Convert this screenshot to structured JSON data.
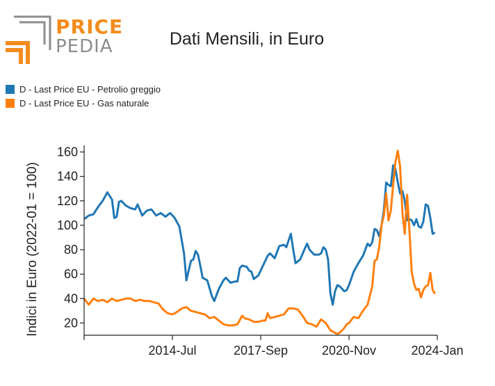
{
  "logo": {
    "word1": "PRICE",
    "word2": "PEDIA",
    "orange": "#f28c1c",
    "gray": "#8c8c8c"
  },
  "chart_data": {
    "type": "line",
    "title": "Dati Mensili, in Euro",
    "ylabel": "Indici in Euro (2022-01 = 100)",
    "xlabel": "",
    "x_range": [
      "2011-05",
      "2024-01"
    ],
    "x_ticks": [
      {
        "date": "2011-05",
        "label": ""
      },
      {
        "date": "2014-07",
        "label": "2014-Jul"
      },
      {
        "date": "2017-09",
        "label": "2017-Sep"
      },
      {
        "date": "2020-11",
        "label": "2020-Nov"
      },
      {
        "date": "2024-01",
        "label": "2024-Jan"
      }
    ],
    "ylim": [
      10,
      162
    ],
    "y_ticks": [
      20,
      40,
      60,
      80,
      100,
      120,
      140,
      160
    ],
    "grid": false,
    "legend_position": "top-left",
    "series": [
      {
        "name": "D - Last Price EU - Petrolio greggio",
        "color": "#1f77b4",
        "points": [
          [
            "2011-05",
            105
          ],
          [
            "2011-07",
            108
          ],
          [
            "2011-09",
            109
          ],
          [
            "2011-11",
            115
          ],
          [
            "2012-01",
            120
          ],
          [
            "2012-03",
            127
          ],
          [
            "2012-05",
            121
          ],
          [
            "2012-06",
            106
          ],
          [
            "2012-07",
            107
          ],
          [
            "2012-08",
            119
          ],
          [
            "2012-09",
            120
          ],
          [
            "2012-11",
            116
          ],
          [
            "2013-01",
            114
          ],
          [
            "2013-03",
            113
          ],
          [
            "2013-04",
            117
          ],
          [
            "2013-06",
            108
          ],
          [
            "2013-08",
            112
          ],
          [
            "2013-10",
            113
          ],
          [
            "2013-12",
            108
          ],
          [
            "2014-02",
            110
          ],
          [
            "2014-04",
            107
          ],
          [
            "2014-06",
            110
          ],
          [
            "2014-08",
            106
          ],
          [
            "2014-10",
            99
          ],
          [
            "2014-12",
            77
          ],
          [
            "2015-01",
            55
          ],
          [
            "2015-03",
            71
          ],
          [
            "2015-04",
            72
          ],
          [
            "2015-05",
            79
          ],
          [
            "2015-06",
            76
          ],
          [
            "2015-07",
            67
          ],
          [
            "2015-08",
            57
          ],
          [
            "2015-10",
            55
          ],
          [
            "2015-12",
            42
          ],
          [
            "2016-01",
            38
          ],
          [
            "2016-03",
            48
          ],
          [
            "2016-05",
            55
          ],
          [
            "2016-06",
            57
          ],
          [
            "2016-08",
            53
          ],
          [
            "2016-10",
            54
          ],
          [
            "2016-11",
            54
          ],
          [
            "2016-12",
            65
          ],
          [
            "2017-01",
            67
          ],
          [
            "2017-03",
            66
          ],
          [
            "2017-04",
            63
          ],
          [
            "2017-05",
            62
          ],
          [
            "2017-06",
            56
          ],
          [
            "2017-08",
            59
          ],
          [
            "2017-09",
            63
          ],
          [
            "2017-10",
            67
          ],
          [
            "2017-12",
            75
          ],
          [
            "2018-01",
            77
          ],
          [
            "2018-03",
            73
          ],
          [
            "2018-05",
            83
          ],
          [
            "2018-07",
            84
          ],
          [
            "2018-08",
            82
          ],
          [
            "2018-10",
            93
          ],
          [
            "2018-11",
            80
          ],
          [
            "2018-12",
            69
          ],
          [
            "2019-02",
            72
          ],
          [
            "2019-04",
            81
          ],
          [
            "2019-05",
            85
          ],
          [
            "2019-06",
            80
          ],
          [
            "2019-08",
            76
          ],
          [
            "2019-10",
            76
          ],
          [
            "2019-11",
            77
          ],
          [
            "2019-12",
            82
          ],
          [
            "2020-01",
            80
          ],
          [
            "2020-02",
            72
          ],
          [
            "2020-03",
            44
          ],
          [
            "2020-04",
            35
          ],
          [
            "2020-05",
            46
          ],
          [
            "2020-06",
            51
          ],
          [
            "2020-07",
            50
          ],
          [
            "2020-09",
            46
          ],
          [
            "2020-10",
            47
          ],
          [
            "2020-11",
            51
          ],
          [
            "2021-01",
            62
          ],
          [
            "2021-03",
            69
          ],
          [
            "2021-05",
            75
          ],
          [
            "2021-07",
            85
          ],
          [
            "2021-08",
            83
          ],
          [
            "2021-09",
            86
          ],
          [
            "2021-10",
            97
          ],
          [
            "2021-11",
            96
          ],
          [
            "2021-12",
            91
          ],
          [
            "2022-01",
            100
          ],
          [
            "2022-02",
            112
          ],
          [
            "2022-03",
            135
          ],
          [
            "2022-04",
            133
          ],
          [
            "2022-05",
            132
          ],
          [
            "2022-06",
            149
          ],
          [
            "2022-07",
            146
          ],
          [
            "2022-08",
            135
          ],
          [
            "2022-09",
            126
          ],
          [
            "2022-10",
            128
          ],
          [
            "2022-11",
            120
          ],
          [
            "2022-12",
            104
          ],
          [
            "2023-01",
            105
          ],
          [
            "2023-02",
            104
          ],
          [
            "2023-03",
            100
          ],
          [
            "2023-04",
            105
          ],
          [
            "2023-05",
            99
          ],
          [
            "2023-06",
            98
          ],
          [
            "2023-07",
            103
          ],
          [
            "2023-08",
            117
          ],
          [
            "2023-09",
            116
          ],
          [
            "2023-10",
            106
          ],
          [
            "2023-11",
            93
          ],
          [
            "2023-12",
            94
          ]
        ]
      },
      {
        "name": "D - Last Price EU - Gas naturale",
        "color": "#ff7f0e",
        "points": [
          [
            "2011-05",
            40
          ],
          [
            "2011-07",
            35
          ],
          [
            "2011-09",
            40
          ],
          [
            "2011-11",
            38
          ],
          [
            "2012-01",
            39
          ],
          [
            "2012-03",
            37
          ],
          [
            "2012-05",
            40
          ],
          [
            "2012-07",
            38
          ],
          [
            "2012-09",
            39
          ],
          [
            "2012-11",
            40
          ],
          [
            "2013-01",
            40
          ],
          [
            "2013-03",
            38
          ],
          [
            "2013-05",
            39
          ],
          [
            "2013-07",
            38
          ],
          [
            "2013-09",
            38
          ],
          [
            "2013-11",
            37
          ],
          [
            "2014-01",
            36
          ],
          [
            "2014-03",
            31
          ],
          [
            "2014-05",
            28
          ],
          [
            "2014-07",
            27
          ],
          [
            "2014-09",
            29
          ],
          [
            "2014-11",
            32
          ],
          [
            "2015-01",
            33
          ],
          [
            "2015-03",
            30
          ],
          [
            "2015-05",
            29
          ],
          [
            "2015-07",
            28
          ],
          [
            "2015-09",
            27
          ],
          [
            "2015-11",
            24
          ],
          [
            "2016-01",
            25
          ],
          [
            "2016-03",
            22
          ],
          [
            "2016-05",
            19
          ],
          [
            "2016-07",
            18
          ],
          [
            "2016-09",
            18
          ],
          [
            "2016-11",
            19
          ],
          [
            "2017-01",
            26
          ],
          [
            "2017-02",
            24
          ],
          [
            "2017-04",
            23
          ],
          [
            "2017-06",
            21
          ],
          [
            "2017-08",
            21
          ],
          [
            "2017-10",
            22
          ],
          [
            "2017-11",
            22
          ],
          [
            "2017-12",
            28
          ],
          [
            "2018-01",
            24
          ],
          [
            "2018-03",
            25
          ],
          [
            "2018-05",
            26
          ],
          [
            "2018-07",
            27
          ],
          [
            "2018-09",
            32
          ],
          [
            "2018-11",
            32
          ],
          [
            "2019-01",
            31
          ],
          [
            "2019-03",
            26
          ],
          [
            "2019-05",
            20
          ],
          [
            "2019-07",
            19
          ],
          [
            "2019-09",
            17
          ],
          [
            "2019-11",
            23
          ],
          [
            "2020-01",
            20
          ],
          [
            "2020-03",
            14
          ],
          [
            "2020-05",
            12
          ],
          [
            "2020-06",
            11
          ],
          [
            "2020-07",
            12
          ],
          [
            "2020-09",
            16
          ],
          [
            "2020-10",
            19
          ],
          [
            "2020-11",
            20
          ],
          [
            "2021-01",
            25
          ],
          [
            "2021-03",
            24
          ],
          [
            "2021-05",
            30
          ],
          [
            "2021-07",
            35
          ],
          [
            "2021-09",
            50
          ],
          [
            "2021-10",
            71
          ],
          [
            "2021-11",
            72
          ],
          [
            "2021-12",
            82
          ],
          [
            "2022-01",
            100
          ],
          [
            "2022-02",
            108
          ],
          [
            "2022-03",
            126
          ],
          [
            "2022-04",
            104
          ],
          [
            "2022-05",
            112
          ],
          [
            "2022-06",
            133
          ],
          [
            "2022-07",
            152
          ],
          [
            "2022-08",
            161
          ],
          [
            "2022-09",
            148
          ],
          [
            "2022-10",
            110
          ],
          [
            "2022-11",
            93
          ],
          [
            "2022-12",
            125
          ],
          [
            "2023-01",
            96
          ],
          [
            "2023-02",
            62
          ],
          [
            "2023-03",
            52
          ],
          [
            "2023-04",
            47
          ],
          [
            "2023-05",
            48
          ],
          [
            "2023-06",
            41
          ],
          [
            "2023-07",
            47
          ],
          [
            "2023-08",
            50
          ],
          [
            "2023-09",
            51
          ],
          [
            "2023-10",
            61
          ],
          [
            "2023-11",
            47
          ],
          [
            "2023-12",
            44
          ]
        ]
      }
    ]
  }
}
